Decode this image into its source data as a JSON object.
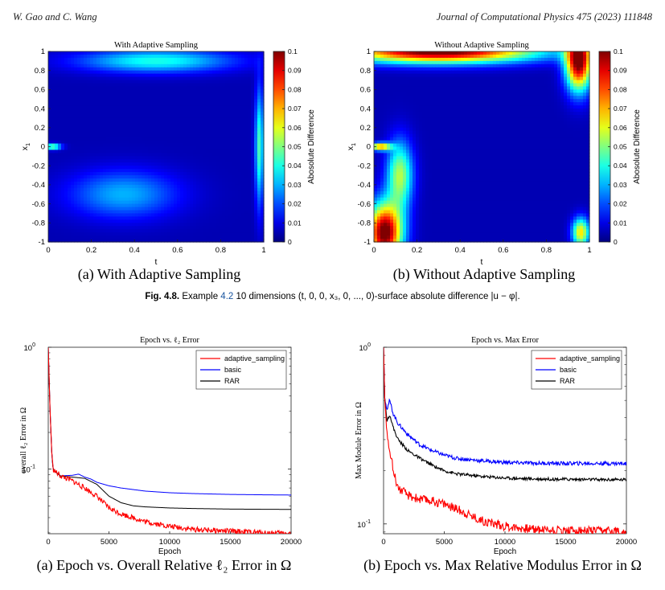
{
  "header": {
    "authors": "W. Gao and C. Wang",
    "journal": "Journal of Computational Physics 475 (2023) 111848"
  },
  "figure_4_8": {
    "caption_label": "Fig. 4.8.",
    "caption_pre": "Example",
    "caption_ref": "4.2",
    "caption_post": "10 dimensions (t, 0, 0, x₃, 0, ..., 0)-surface absolute difference |u − φ|.",
    "subcaption_a": "(a) With Adaptive Sampling",
    "subcaption_b": "(b) Without Adaptive Sampling"
  },
  "figure_4_9": {
    "subcaption_a": "(a) Epoch vs. Overall Relative ℓ₂ Error in Ω",
    "subcaption_b": "(b) Epoch vs. Max Relative Modulus Error in Ω"
  },
  "colors": {
    "adaptive_sampling": "#ff0000",
    "basic": "#0000ff",
    "RAR": "#000000"
  },
  "chart_data": [
    {
      "type": "heatmap",
      "title": "With Adaptive Sampling",
      "xlabel": "t",
      "ylabel": "x1",
      "xlim": [
        0,
        1
      ],
      "ylim": [
        -1,
        1
      ],
      "xticks": [
        "0",
        "0.2",
        "0.4",
        "0.6",
        "0.8",
        "1"
      ],
      "yticks": [
        "-1",
        "-0.8",
        "-0.6",
        "-0.4",
        "-0.2",
        "0",
        "0.2",
        "0.4",
        "0.6",
        "0.8",
        "1"
      ],
      "colorbar": {
        "label": "Abosolute Difference",
        "range": [
          0,
          0.1
        ],
        "ticks": [
          "0",
          "0.01",
          "0.02",
          "0.03",
          "0.04",
          "0.05",
          "0.06",
          "0.07",
          "0.08",
          "0.09",
          "0.1"
        ]
      },
      "colormap": "jet",
      "blobs": [
        {
          "t": 0.02,
          "x": 0.0,
          "st": 0.04,
          "sx": 0.03,
          "v": 0.05
        },
        {
          "t": 0.98,
          "x": 0.0,
          "st": 0.02,
          "sx": 0.6,
          "v": 0.04
        },
        {
          "t": 0.5,
          "x": 0.9,
          "st": 0.35,
          "sx": 0.12,
          "v": 0.035
        },
        {
          "t": 0.35,
          "x": -0.5,
          "st": 0.25,
          "sx": 0.25,
          "v": 0.025
        }
      ]
    },
    {
      "type": "heatmap",
      "title": "Without Adaptive Sampling",
      "xlabel": "t",
      "ylabel": "x1",
      "xlim": [
        0,
        1
      ],
      "ylim": [
        -1,
        1
      ],
      "xticks": [
        "0",
        "0.2",
        "0.4",
        "0.6",
        "0.8",
        "1"
      ],
      "yticks": [
        "-1",
        "-0.8",
        "-0.6",
        "-0.4",
        "-0.2",
        "0",
        "0.2",
        "0.4",
        "0.6",
        "0.8",
        "1"
      ],
      "colorbar": {
        "label": "Abosolute Difference",
        "range": [
          0,
          0.1
        ],
        "ticks": [
          "0",
          "0.01",
          "0.02",
          "0.03",
          "0.04",
          "0.05",
          "0.06",
          "0.07",
          "0.08",
          "0.09",
          "0.1"
        ]
      },
      "colormap": "jet",
      "blobs": [
        {
          "t": 0.3,
          "x": 1.0,
          "st": 0.45,
          "sx": 0.12,
          "v": 0.1
        },
        {
          "t": 0.05,
          "x": -0.9,
          "st": 0.08,
          "sx": 0.3,
          "v": 0.1
        },
        {
          "t": 0.95,
          "x": 0.9,
          "st": 0.06,
          "sx": 0.3,
          "v": 0.1
        },
        {
          "t": 0.96,
          "x": -0.9,
          "st": 0.04,
          "sx": 0.15,
          "v": 0.06
        },
        {
          "t": 0.03,
          "x": 0.0,
          "st": 0.05,
          "sx": 0.04,
          "v": 0.07
        },
        {
          "t": 0.12,
          "x": -0.3,
          "st": 0.06,
          "sx": 0.35,
          "v": 0.05
        }
      ]
    },
    {
      "type": "line",
      "title": "Epoch vs. ℓ₂ Error",
      "xlabel": "Epoch",
      "ylabel": "overall ℓ₂ Error in Ω",
      "xlim": [
        0,
        20000
      ],
      "ylim": [
        0.0295,
        1.0
      ],
      "yscale": "log",
      "xticks": [
        0,
        5000,
        10000,
        15000,
        20000
      ],
      "yticks": [
        {
          "v": 1,
          "label": "10",
          "exp": "0"
        },
        {
          "v": 0.1,
          "label": "10",
          "exp": "-1"
        }
      ],
      "legend": "top-right",
      "series": [
        {
          "name": "adaptive_sampling",
          "noise": 0.05,
          "x": [
            0,
            150,
            300,
            400,
            600,
            1000,
            2000,
            3000,
            4000,
            5000,
            6000,
            8000,
            10000,
            12000,
            15000,
            18000,
            20000
          ],
          "y": [
            1.0,
            0.3,
            0.13,
            0.1,
            0.095,
            0.088,
            0.08,
            0.07,
            0.06,
            0.048,
            0.043,
            0.037,
            0.034,
            0.032,
            0.031,
            0.03,
            0.0298
          ]
        },
        {
          "name": "basic",
          "noise": 0,
          "x": [
            0,
            150,
            300,
            400,
            600,
            1000,
            2000,
            2500,
            3000,
            3500,
            4000,
            5000,
            6000,
            8000,
            10000,
            12000,
            15000,
            18000,
            20000
          ],
          "y": [
            1.0,
            0.3,
            0.13,
            0.1,
            0.095,
            0.088,
            0.089,
            0.091,
            0.086,
            0.083,
            0.078,
            0.073,
            0.07,
            0.066,
            0.064,
            0.063,
            0.062,
            0.0615,
            0.0613
          ]
        },
        {
          "name": "RAR",
          "noise": 0,
          "x": [
            0,
            150,
            300,
            400,
            600,
            1000,
            2000,
            3000,
            4000,
            5000,
            6000,
            7000,
            8000,
            10000,
            12000,
            15000,
            18000,
            20000
          ],
          "y": [
            1.0,
            0.3,
            0.13,
            0.1,
            0.095,
            0.088,
            0.086,
            0.084,
            0.075,
            0.06,
            0.053,
            0.05,
            0.049,
            0.048,
            0.0475,
            0.047,
            0.0468,
            0.0467
          ]
        }
      ]
    },
    {
      "type": "line",
      "title": "Epoch vs. Max Error",
      "xlabel": "Epoch",
      "ylabel": "Max Module Error in Ω",
      "xlim": [
        0,
        20000
      ],
      "ylim": [
        0.088,
        1.0
      ],
      "yscale": "log",
      "xticks": [
        0,
        5000,
        10000,
        15000,
        20000
      ],
      "yticks": [
        {
          "v": 1,
          "label": "10",
          "exp": "0"
        },
        {
          "v": 0.1,
          "label": "10",
          "exp": "-1"
        }
      ],
      "legend": "top-right",
      "series": [
        {
          "name": "adaptive_sampling",
          "noise": 0.06,
          "x": [
            0,
            100,
            300,
            500,
            800,
            1200,
            2000,
            3000,
            4000,
            5000,
            6000,
            8000,
            10000,
            12000,
            15000,
            18000,
            20000
          ],
          "y": [
            1.0,
            0.5,
            0.32,
            0.27,
            0.2,
            0.16,
            0.145,
            0.138,
            0.135,
            0.13,
            0.122,
            0.105,
            0.097,
            0.094,
            0.092,
            0.091,
            0.091
          ]
        },
        {
          "name": "basic",
          "noise": 0.025,
          "x": [
            0,
            100,
            300,
            500,
            800,
            1200,
            2000,
            3000,
            4000,
            5000,
            6000,
            8000,
            10000,
            12000,
            15000,
            18000,
            20000
          ],
          "y": [
            1.0,
            0.5,
            0.45,
            0.5,
            0.42,
            0.37,
            0.32,
            0.28,
            0.26,
            0.245,
            0.235,
            0.228,
            0.223,
            0.221,
            0.22,
            0.22,
            0.22
          ]
        },
        {
          "name": "RAR",
          "noise": 0.02,
          "x": [
            0,
            100,
            300,
            500,
            800,
            1200,
            2000,
            3000,
            4000,
            5000,
            6000,
            8000,
            10000,
            12000,
            15000,
            18000,
            20000
          ],
          "y": [
            1.0,
            0.5,
            0.38,
            0.42,
            0.35,
            0.3,
            0.26,
            0.235,
            0.215,
            0.2,
            0.192,
            0.186,
            0.182,
            0.18,
            0.179,
            0.178,
            0.178
          ]
        }
      ]
    }
  ]
}
